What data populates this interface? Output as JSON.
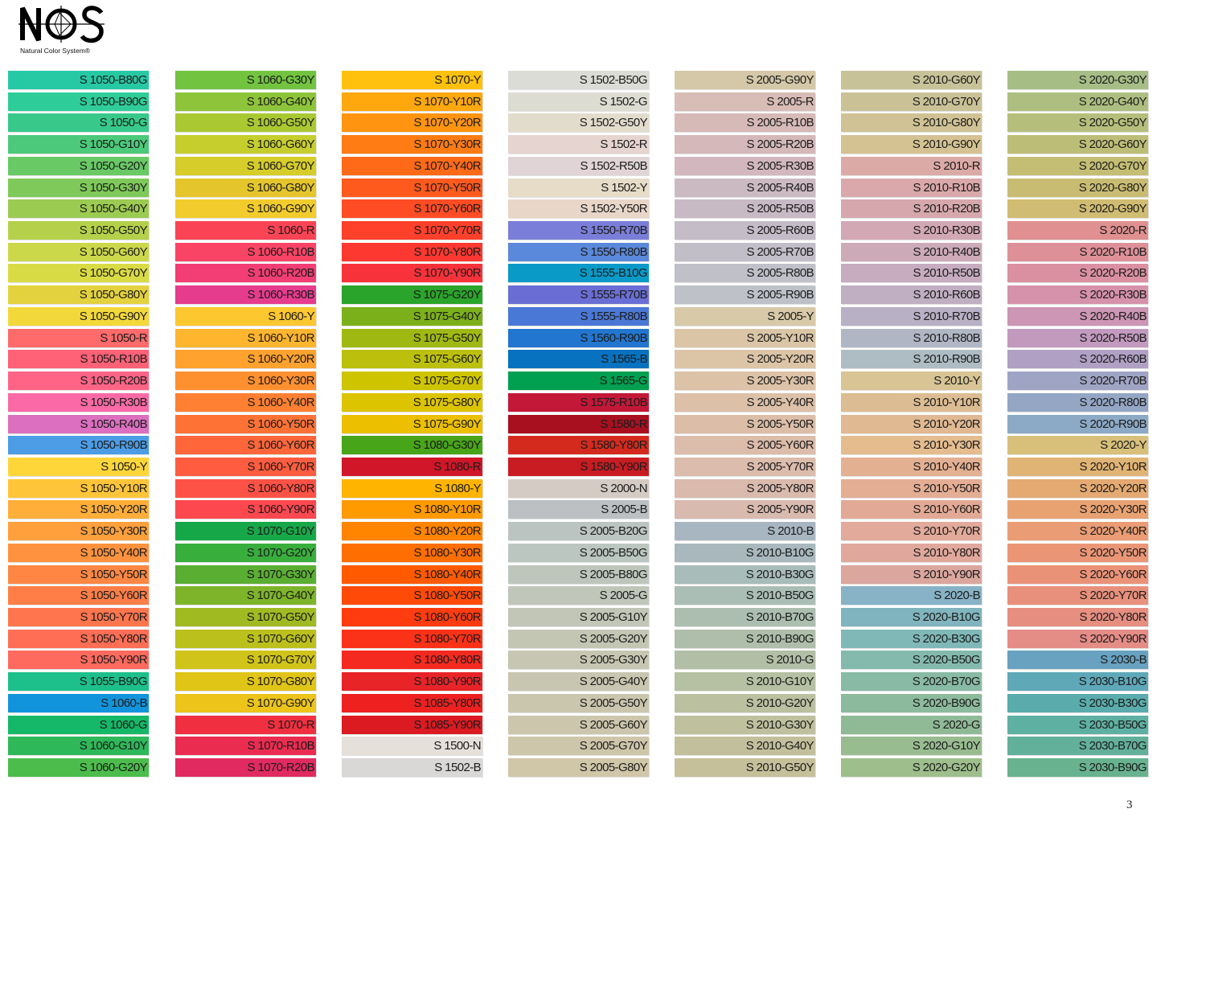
{
  "logo": {
    "letters": "NCS",
    "tagline": "Natural Color System®"
  },
  "page_number": "3",
  "columns": [
    [
      {
        "code": "S 1050-B80G",
        "color": "#27c9a4"
      },
      {
        "code": "S 1050-B90G",
        "color": "#2ecc98"
      },
      {
        "code": "S 1050-G",
        "color": "#38c98a"
      },
      {
        "code": "S 1050-G10Y",
        "color": "#4cc97a"
      },
      {
        "code": "S 1050-G20Y",
        "color": "#68c965"
      },
      {
        "code": "S 1050-G30Y",
        "color": "#7ec95a"
      },
      {
        "code": "S 1050-G40Y",
        "color": "#9ccb52"
      },
      {
        "code": "S 1050-G50Y",
        "color": "#b5d04a"
      },
      {
        "code": "S 1050-G60Y",
        "color": "#cbd84a"
      },
      {
        "code": "S 1050-G70Y",
        "color": "#d9db44"
      },
      {
        "code": "S 1050-G80Y",
        "color": "#e3d23e"
      },
      {
        "code": "S 1050-G90Y",
        "color": "#f3d83c"
      },
      {
        "code": "S 1050-R",
        "color": "#ff6a6a"
      },
      {
        "code": "S 1050-R10B",
        "color": "#ff6176"
      },
      {
        "code": "S 1050-R20B",
        "color": "#ff6486"
      },
      {
        "code": "S 1050-R30B",
        "color": "#fb6aa6"
      },
      {
        "code": "S 1050-R40B",
        "color": "#dc6fc0"
      },
      {
        "code": "S 1050-R90B",
        "color": "#4d9ce6"
      },
      {
        "code": "S 1050-Y",
        "color": "#ffd63a"
      },
      {
        "code": "S 1050-Y10R",
        "color": "#ffc53a"
      },
      {
        "code": "S 1050-Y20R",
        "color": "#ffae3a"
      },
      {
        "code": "S 1050-Y30R",
        "color": "#ffa03c"
      },
      {
        "code": "S 1050-Y40R",
        "color": "#ff923e"
      },
      {
        "code": "S 1050-Y50R",
        "color": "#ff8743"
      },
      {
        "code": "S 1050-Y60R",
        "color": "#ff7e48"
      },
      {
        "code": "S 1050-Y70R",
        "color": "#ff764e"
      },
      {
        "code": "S 1050-Y80R",
        "color": "#ff6e55"
      },
      {
        "code": "S 1050-Y90R",
        "color": "#ff6a5e"
      },
      {
        "code": "S 1055-B90G",
        "color": "#1dc08a"
      },
      {
        "code": "S 1060-B",
        "color": "#1294dc"
      },
      {
        "code": "S 1060-G",
        "color": "#15b868"
      },
      {
        "code": "S 1060-G10Y",
        "color": "#2eb85a"
      },
      {
        "code": "S 1060-G20Y",
        "color": "#4cbd4c"
      }
    ],
    [
      {
        "code": "S 1060-G30Y",
        "color": "#72c440"
      },
      {
        "code": "S 1060-G40Y",
        "color": "#8ec43a"
      },
      {
        "code": "S 1060-G50Y",
        "color": "#aac832"
      },
      {
        "code": "S 1060-G60Y",
        "color": "#c6ce2e"
      },
      {
        "code": "S 1060-G70Y",
        "color": "#d6cc2a"
      },
      {
        "code": "S 1060-G80Y",
        "color": "#e4c62c"
      },
      {
        "code": "S 1060-G90Y",
        "color": "#f2cc2c"
      },
      {
        "code": "S 1060-R",
        "color": "#fa4455"
      },
      {
        "code": "S 1060-R10B",
        "color": "#fa4465"
      },
      {
        "code": "S 1060-R20B",
        "color": "#f23e74"
      },
      {
        "code": "S 1060-R30B",
        "color": "#e63c8e"
      },
      {
        "code": "S 1060-Y",
        "color": "#fdc730"
      },
      {
        "code": "S 1060-Y10R",
        "color": "#ffb52e"
      },
      {
        "code": "S 1060-Y20R",
        "color": "#ffa22e"
      },
      {
        "code": "S 1060-Y30R",
        "color": "#ff9030"
      },
      {
        "code": "S 1060-Y40R",
        "color": "#ff8032"
      },
      {
        "code": "S 1060-Y50R",
        "color": "#ff7236"
      },
      {
        "code": "S 1060-Y60R",
        "color": "#ff663a"
      },
      {
        "code": "S 1060-Y70R",
        "color": "#ff5c40"
      },
      {
        "code": "S 1060-Y80R",
        "color": "#ff5246"
      },
      {
        "code": "S 1060-Y90R",
        "color": "#fd4850"
      },
      {
        "code": "S 1070-G10Y",
        "color": "#16a848"
      },
      {
        "code": "S 1070-G20Y",
        "color": "#38ae3c"
      },
      {
        "code": "S 1070-G30Y",
        "color": "#5aae32"
      },
      {
        "code": "S 1070-G40Y",
        "color": "#7eb42a"
      },
      {
        "code": "S 1070-G50Y",
        "color": "#a0ba22"
      },
      {
        "code": "S 1070-G60Y",
        "color": "#bcc01c"
      },
      {
        "code": "S 1070-G70Y",
        "color": "#d0c41a"
      },
      {
        "code": "S 1070-G80Y",
        "color": "#e0c416"
      },
      {
        "code": "S 1070-G90Y",
        "color": "#ecc41a"
      },
      {
        "code": "S 1070-R",
        "color": "#f03040"
      },
      {
        "code": "S 1070-R10B",
        "color": "#ea2c50"
      },
      {
        "code": "S 1070-R20B",
        "color": "#e02a60"
      }
    ],
    [
      {
        "code": "S 1070-Y",
        "color": "#ffc10e"
      },
      {
        "code": "S 1070-Y10R",
        "color": "#ffa80e"
      },
      {
        "code": "S 1070-Y20R",
        "color": "#ff9410"
      },
      {
        "code": "S 1070-Y30R",
        "color": "#ff7c14"
      },
      {
        "code": "S 1070-Y40R",
        "color": "#ff6a18"
      },
      {
        "code": "S 1070-Y50R",
        "color": "#ff5a1e"
      },
      {
        "code": "S 1070-Y60R",
        "color": "#ff4c24"
      },
      {
        "code": "S 1070-Y70R",
        "color": "#ff402a"
      },
      {
        "code": "S 1070-Y80R",
        "color": "#fd3830"
      },
      {
        "code": "S 1070-Y90R",
        "color": "#f8323a"
      },
      {
        "code": "S 1075-G20Y",
        "color": "#2aa42a"
      },
      {
        "code": "S 1075-G40Y",
        "color": "#7cb01a"
      },
      {
        "code": "S 1075-G50Y",
        "color": "#a0b812"
      },
      {
        "code": "S 1075-G60Y",
        "color": "#bcc00c"
      },
      {
        "code": "S 1075-G70Y",
        "color": "#cec400"
      },
      {
        "code": "S 1075-G80Y",
        "color": "#dcc400"
      },
      {
        "code": "S 1075-G90Y",
        "color": "#ecc000"
      },
      {
        "code": "S 1080-G30Y",
        "color": "#48a418"
      },
      {
        "code": "S 1080-R",
        "color": "#d01628"
      },
      {
        "code": "S 1080-Y",
        "color": "#ffb400"
      },
      {
        "code": "S 1080-Y10R",
        "color": "#ff9a00"
      },
      {
        "code": "S 1080-Y20R",
        "color": "#ff8400"
      },
      {
        "code": "S 1080-Y30R",
        "color": "#ff6e00"
      },
      {
        "code": "S 1080-Y40R",
        "color": "#ff5a00"
      },
      {
        "code": "S 1080-Y50R",
        "color": "#ff4a08"
      },
      {
        "code": "S 1080-Y60R",
        "color": "#ff3c10"
      },
      {
        "code": "S 1080-Y70R",
        "color": "#fc3218"
      },
      {
        "code": "S 1080-Y80R",
        "color": "#f42a20"
      },
      {
        "code": "S 1080-Y90R",
        "color": "#e82428"
      },
      {
        "code": "S 1085-Y80R",
        "color": "#ee2020"
      },
      {
        "code": "S 1085-Y90R",
        "color": "#dc1a22"
      },
      {
        "code": "S 1500-N",
        "color": "#e6e0da"
      },
      {
        "code": "S 1502-B",
        "color": "#dad8d6"
      }
    ],
    [
      {
        "code": "S 1502-B50G",
        "color": "#dcdcd6"
      },
      {
        "code": "S 1502-G",
        "color": "#dddcd2"
      },
      {
        "code": "S 1502-G50Y",
        "color": "#e2dccc"
      },
      {
        "code": "S 1502-R",
        "color": "#e6d4d0"
      },
      {
        "code": "S 1502-R50B",
        "color": "#e0d4d6"
      },
      {
        "code": "S 1502-Y",
        "color": "#e6dcc8"
      },
      {
        "code": "S 1502-Y50R",
        "color": "#e8d6c8"
      },
      {
        "code": "S 1550-R70B",
        "color": "#7a7ed8"
      },
      {
        "code": "S 1550-R80B",
        "color": "#5a88da"
      },
      {
        "code": "S 1555-B10G",
        "color": "#0a9ac8"
      },
      {
        "code": "S 1555-R70B",
        "color": "#6a6ed4"
      },
      {
        "code": "S 1555-R80B",
        "color": "#4a78d6"
      },
      {
        "code": "S 1560-R90B",
        "color": "#2276d0"
      },
      {
        "code": "S 1565-B",
        "color": "#0672c0"
      },
      {
        "code": "S 1565-G",
        "color": "#00a050"
      },
      {
        "code": "S 1575-R10B",
        "color": "#c41838"
      },
      {
        "code": "S 1580-R",
        "color": "#a81020"
      },
      {
        "code": "S 1580-Y80R",
        "color": "#d42a1e"
      },
      {
        "code": "S 1580-Y90R",
        "color": "#c81c22"
      },
      {
        "code": "S 2000-N",
        "color": "#d4ccc4"
      },
      {
        "code": "S 2005-B",
        "color": "#bcc0c2"
      },
      {
        "code": "S 2005-B20G",
        "color": "#bcc4c2"
      },
      {
        "code": "S 2005-B50G",
        "color": "#bcc6c0"
      },
      {
        "code": "S 2005-B80G",
        "color": "#bec6bc"
      },
      {
        "code": "S 2005-G",
        "color": "#c0c6ba"
      },
      {
        "code": "S 2005-G10Y",
        "color": "#c2c6b6"
      },
      {
        "code": "S 2005-G20Y",
        "color": "#c4c6b4"
      },
      {
        "code": "S 2005-G30Y",
        "color": "#c6c6b2"
      },
      {
        "code": "S 2005-G40Y",
        "color": "#c8c6b0"
      },
      {
        "code": "S 2005-G50Y",
        "color": "#cac6ae"
      },
      {
        "code": "S 2005-G60Y",
        "color": "#ccc6ac"
      },
      {
        "code": "S 2005-G70Y",
        "color": "#cec6aa"
      },
      {
        "code": "S 2005-G80Y",
        "color": "#d0c6a8"
      }
    ],
    [
      {
        "code": "S 2005-G90Y",
        "color": "#d4c8a8"
      },
      {
        "code": "S 2005-R",
        "color": "#d8bcb6"
      },
      {
        "code": "S 2005-R10B",
        "color": "#d6bab8"
      },
      {
        "code": "S 2005-R20B",
        "color": "#d4b8ba"
      },
      {
        "code": "S 2005-R30B",
        "color": "#d2b8be"
      },
      {
        "code": "S 2005-R40B",
        "color": "#ccbac2"
      },
      {
        "code": "S 2005-R50B",
        "color": "#c8bac4"
      },
      {
        "code": "S 2005-R60B",
        "color": "#c4bcc6"
      },
      {
        "code": "S 2005-R70B",
        "color": "#c2bec8"
      },
      {
        "code": "S 2005-R80B",
        "color": "#c0c0c8"
      },
      {
        "code": "S 2005-R90B",
        "color": "#bec2c8"
      },
      {
        "code": "S 2005-Y",
        "color": "#d8caa8"
      },
      {
        "code": "S 2005-Y10R",
        "color": "#dac6a6"
      },
      {
        "code": "S 2005-Y20R",
        "color": "#dcc4a6"
      },
      {
        "code": "S 2005-Y30R",
        "color": "#dcc2a6"
      },
      {
        "code": "S 2005-Y40R",
        "color": "#dcc0a8"
      },
      {
        "code": "S 2005-Y50R",
        "color": "#dcbea8"
      },
      {
        "code": "S 2005-Y60R",
        "color": "#dcbcaa"
      },
      {
        "code": "S 2005-Y70R",
        "color": "#dcbcac"
      },
      {
        "code": "S 2005-Y80R",
        "color": "#dabaac"
      },
      {
        "code": "S 2005-Y90R",
        "color": "#d8baae"
      },
      {
        "code": "S 2010-B",
        "color": "#a8b6c2"
      },
      {
        "code": "S 2010-B10G",
        "color": "#a8b8bc"
      },
      {
        "code": "S 2010-B30G",
        "color": "#a8bcba"
      },
      {
        "code": "S 2010-B50G",
        "color": "#aabeb6"
      },
      {
        "code": "S 2010-B70G",
        "color": "#acbeb0"
      },
      {
        "code": "S 2010-B90G",
        "color": "#aebeaa"
      },
      {
        "code": "S 2010-G",
        "color": "#b2bea6"
      },
      {
        "code": "S 2010-G10Y",
        "color": "#b6c0a2"
      },
      {
        "code": "S 2010-G20Y",
        "color": "#bac0a0"
      },
      {
        "code": "S 2010-G30Y",
        "color": "#bec09e"
      },
      {
        "code": "S 2010-G40Y",
        "color": "#c2c09c"
      },
      {
        "code": "S 2010-G50Y",
        "color": "#c6c09a"
      }
    ],
    [
      {
        "code": "S 2010-G60Y",
        "color": "#c8c298"
      },
      {
        "code": "S 2010-G70Y",
        "color": "#cac296"
      },
      {
        "code": "S 2010-G80Y",
        "color": "#d0c294"
      },
      {
        "code": "S 2010-G90Y",
        "color": "#d4c292"
      },
      {
        "code": "S 2010-R",
        "color": "#dcaaa6"
      },
      {
        "code": "S 2010-R10B",
        "color": "#daa8aa"
      },
      {
        "code": "S 2010-R20B",
        "color": "#d6a8ae"
      },
      {
        "code": "S 2010-R30B",
        "color": "#d2a8b4"
      },
      {
        "code": "S 2010-R40B",
        "color": "#ccaab8"
      },
      {
        "code": "S 2010-R50B",
        "color": "#c6acbe"
      },
      {
        "code": "S 2010-R60B",
        "color": "#c0aec2"
      },
      {
        "code": "S 2010-R70B",
        "color": "#b8b0c4"
      },
      {
        "code": "S 2010-R80B",
        "color": "#b0b6c4"
      },
      {
        "code": "S 2010-R90B",
        "color": "#aebcc4"
      },
      {
        "code": "S 2010-Y",
        "color": "#d8c494"
      },
      {
        "code": "S 2010-Y10R",
        "color": "#dcbc92"
      },
      {
        "code": "S 2010-Y20R",
        "color": "#e0b892"
      },
      {
        "code": "S 2010-Y30R",
        "color": "#e4bc8e"
      },
      {
        "code": "S 2010-Y40R",
        "color": "#e4b092"
      },
      {
        "code": "S 2010-Y50R",
        "color": "#e4ae94"
      },
      {
        "code": "S 2010-Y60R",
        "color": "#e2aa96"
      },
      {
        "code": "S 2010-Y70R",
        "color": "#e2aa9a"
      },
      {
        "code": "S 2010-Y80R",
        "color": "#e0a89c"
      },
      {
        "code": "S 2010-Y90R",
        "color": "#daa69e"
      },
      {
        "code": "S 2020-B",
        "color": "#88b2c6"
      },
      {
        "code": "S 2020-B10G",
        "color": "#80b4be"
      },
      {
        "code": "S 2020-B30G",
        "color": "#80b8b8"
      },
      {
        "code": "S 2020-B50G",
        "color": "#84baae"
      },
      {
        "code": "S 2020-B70G",
        "color": "#88baa6"
      },
      {
        "code": "S 2020-B90G",
        "color": "#8cba9c"
      },
      {
        "code": "S 2020-G",
        "color": "#90ba96"
      },
      {
        "code": "S 2020-G10Y",
        "color": "#98bc90"
      },
      {
        "code": "S 2020-G20Y",
        "color": "#9ebe8c"
      }
    ],
    [
      {
        "code": "S 2020-G30Y",
        "color": "#a6be86"
      },
      {
        "code": "S 2020-G40Y",
        "color": "#aebe80"
      },
      {
        "code": "S 2020-G50Y",
        "color": "#b6be7c"
      },
      {
        "code": "S 2020-G60Y",
        "color": "#bcbe78"
      },
      {
        "code": "S 2020-G70Y",
        "color": "#c4be74"
      },
      {
        "code": "S 2020-G80Y",
        "color": "#c8bc72"
      },
      {
        "code": "S 2020-G90Y",
        "color": "#d0bc72"
      },
      {
        "code": "S 2020-R",
        "color": "#e09090"
      },
      {
        "code": "S 2020-R10B",
        "color": "#de9098"
      },
      {
        "code": "S 2020-R20B",
        "color": "#da90a0"
      },
      {
        "code": "S 2020-R30B",
        "color": "#d692aa"
      },
      {
        "code": "S 2020-R40B",
        "color": "#cc96b4"
      },
      {
        "code": "S 2020-R50B",
        "color": "#c29abe"
      },
      {
        "code": "S 2020-R60B",
        "color": "#b0a0c4"
      },
      {
        "code": "S 2020-R70B",
        "color": "#a0a4c4"
      },
      {
        "code": "S 2020-R80B",
        "color": "#94a6c4"
      },
      {
        "code": "S 2020-R90B",
        "color": "#8caac6"
      },
      {
        "code": "S 2020-Y",
        "color": "#d8c07a"
      },
      {
        "code": "S 2020-Y10R",
        "color": "#e0b474"
      },
      {
        "code": "S 2020-Y20R",
        "color": "#e4aa72"
      },
      {
        "code": "S 2020-Y30R",
        "color": "#e8a272"
      },
      {
        "code": "S 2020-Y40R",
        "color": "#ea9c74"
      },
      {
        "code": "S 2020-Y50R",
        "color": "#ea9676"
      },
      {
        "code": "S 2020-Y60R",
        "color": "#ea9278"
      },
      {
        "code": "S 2020-Y70R",
        "color": "#e8907c"
      },
      {
        "code": "S 2020-Y80R",
        "color": "#e68e80"
      },
      {
        "code": "S 2020-Y90R",
        "color": "#e48c86"
      },
      {
        "code": "S 2030-B",
        "color": "#68a2c0"
      },
      {
        "code": "S 2030-B10G",
        "color": "#5ea8b8"
      },
      {
        "code": "S 2030-B30G",
        "color": "#5aacac"
      },
      {
        "code": "S 2030-B50G",
        "color": "#5eb0a2"
      },
      {
        "code": "S 2030-B70G",
        "color": "#62b09a"
      },
      {
        "code": "S 2030-B90G",
        "color": "#68b290"
      }
    ]
  ]
}
